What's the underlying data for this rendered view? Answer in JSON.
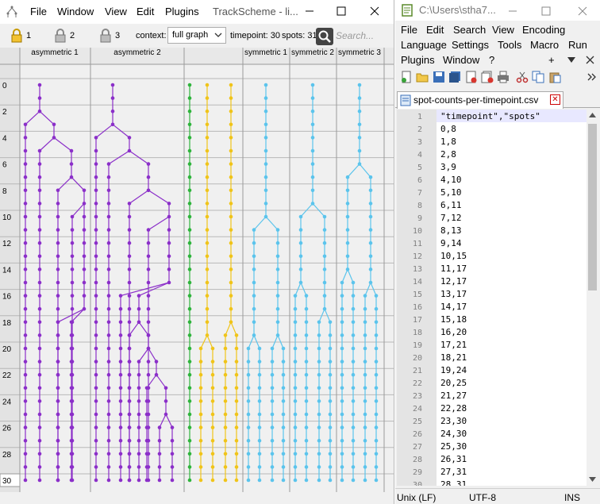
{
  "trackscheme": {
    "menu": [
      "File",
      "Window",
      "View",
      "Edit",
      "Plugins"
    ],
    "window_title": "TrackScheme - li...",
    "toolbar": {
      "locks": [
        "1",
        "2",
        "3"
      ],
      "context_label": "context:",
      "context_value": "full graph",
      "timepoint_label": "timepoint: 30",
      "spots_label": "spots: 31",
      "search_placeholder": "Search..."
    },
    "columns": [
      "asymmetric 1",
      "asymmetric 2",
      "",
      "symmetric 1",
      "symmetric 2",
      "symmetric 3"
    ],
    "row_labels": [
      "0",
      "2",
      "4",
      "6",
      "8",
      "10",
      "12",
      "14",
      "16",
      "18",
      "20",
      "22",
      "24",
      "26",
      "28",
      "30"
    ],
    "colors": {
      "purple": "#8b2fc9",
      "green": "#2fb43c",
      "yellow": "#f0c419",
      "blue": "#5bc4ec"
    }
  },
  "notepad": {
    "window_title": "C:\\Users\\stha7...",
    "menu_row1": [
      "File",
      "Edit",
      "Search",
      "View",
      "Encoding"
    ],
    "menu_row2": [
      "Language",
      "Settings",
      "Tools",
      "Macro",
      "Run"
    ],
    "menu_row3": [
      "Plugins",
      "Window",
      "?"
    ],
    "tab_label": "spot-counts-per-timepoint.csv",
    "lines": [
      {
        "num": "1",
        "text": "\"timepoint\",\"spots\""
      },
      {
        "num": "2",
        "text": "0,8"
      },
      {
        "num": "3",
        "text": "1,8"
      },
      {
        "num": "4",
        "text": "2,8"
      },
      {
        "num": "5",
        "text": "3,9"
      },
      {
        "num": "6",
        "text": "4,10"
      },
      {
        "num": "7",
        "text": "5,10"
      },
      {
        "num": "8",
        "text": "6,11"
      },
      {
        "num": "9",
        "text": "7,12"
      },
      {
        "num": "10",
        "text": "8,13"
      },
      {
        "num": "11",
        "text": "9,14"
      },
      {
        "num": "12",
        "text": "10,15"
      },
      {
        "num": "13",
        "text": "11,17"
      },
      {
        "num": "14",
        "text": "12,17"
      },
      {
        "num": "15",
        "text": "13,17"
      },
      {
        "num": "16",
        "text": "14,17"
      },
      {
        "num": "17",
        "text": "15,18"
      },
      {
        "num": "18",
        "text": "16,20"
      },
      {
        "num": "19",
        "text": "17,21"
      },
      {
        "num": "20",
        "text": "18,21"
      },
      {
        "num": "21",
        "text": "19,24"
      },
      {
        "num": "22",
        "text": "20,25"
      },
      {
        "num": "23",
        "text": "21,27"
      },
      {
        "num": "24",
        "text": "22,28"
      },
      {
        "num": "25",
        "text": "23,30"
      },
      {
        "num": "26",
        "text": "24,30"
      },
      {
        "num": "27",
        "text": "25,30"
      },
      {
        "num": "28",
        "text": "26,31"
      },
      {
        "num": "29",
        "text": "27,31"
      },
      {
        "num": "30",
        "text": "28,31"
      }
    ],
    "status": {
      "eol": "Unix (LF)",
      "encoding": "UTF-8",
      "mode": "INS"
    }
  }
}
